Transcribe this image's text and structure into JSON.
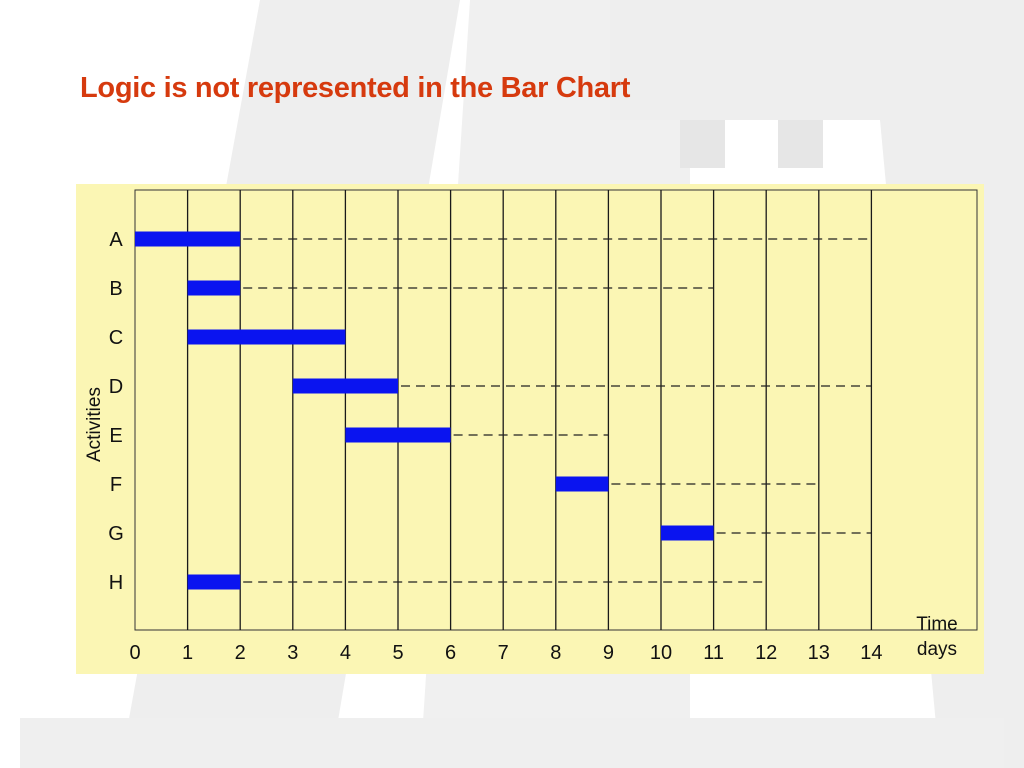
{
  "slide": {
    "title": "Logic is not represented in the Bar Chart"
  },
  "colors": {
    "title": "#d63a0e",
    "panel": "#fbf6b4",
    "bar": "#0a14f0",
    "grid": "#1a1a1a",
    "dash": "#222222"
  },
  "chart_data": {
    "type": "bar",
    "orientation": "horizontal-gantt",
    "title": "",
    "xlabel_lines": [
      "Time",
      "days"
    ],
    "ylabel": "Activities",
    "x_ticks": [
      0,
      1,
      2,
      3,
      4,
      5,
      6,
      7,
      8,
      9,
      10,
      11,
      12,
      13,
      14
    ],
    "xlim": [
      0,
      14
    ],
    "grid": true,
    "legend": "none",
    "activities": [
      {
        "name": "A",
        "start": 0,
        "end": 2,
        "float_end": 14
      },
      {
        "name": "B",
        "start": 1,
        "end": 2,
        "float_end": 11
      },
      {
        "name": "C",
        "start": 1,
        "end": 4,
        "float_end": 4
      },
      {
        "name": "D",
        "start": 3,
        "end": 5,
        "float_end": 14
      },
      {
        "name": "E",
        "start": 4,
        "end": 6,
        "float_end": 9
      },
      {
        "name": "F",
        "start": 8,
        "end": 9,
        "float_end": 13
      },
      {
        "name": "G",
        "start": 10,
        "end": 11,
        "float_end": 14
      },
      {
        "name": "H",
        "start": 1,
        "end": 2,
        "float_end": 12
      }
    ]
  }
}
